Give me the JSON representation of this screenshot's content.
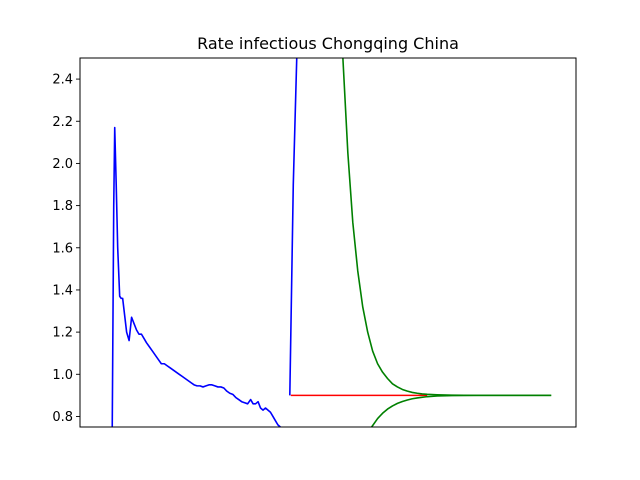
{
  "chart_data": {
    "type": "line",
    "title": "Rate infectious Chongqing China",
    "xlabel": "",
    "ylabel": "",
    "xlim": [
      0,
      100
    ],
    "ylim": [
      0.75,
      2.5
    ],
    "x_ticks_shown": false,
    "y_ticks": [
      0.8,
      1.0,
      1.2,
      1.4,
      1.6,
      1.8,
      2.0,
      2.2,
      2.4
    ],
    "y_tick_labels": [
      "0.8",
      "1.0",
      "1.2",
      "1.4",
      "1.6",
      "1.8",
      "2.0",
      "2.2",
      "2.4"
    ],
    "grid": false,
    "legend": "none",
    "series": [
      {
        "color": "#0000ff",
        "x": [
          6.5,
          6.6,
          6.8,
          7.0,
          7.3,
          7.6,
          8.0,
          8.3,
          8.6,
          9.0,
          9.4,
          9.9,
          10.4,
          10.9,
          11.4,
          11.9,
          12.4,
          12.9,
          13.4,
          14.0,
          14.6,
          15.2,
          15.8,
          16.4,
          17.0,
          17.6,
          18.2,
          18.8,
          19.4,
          20.0,
          20.6,
          21.2,
          21.8,
          22.4,
          23.0,
          23.6,
          24.2,
          24.8,
          25.4,
          26.0,
          26.6,
          27.2,
          27.8,
          28.4,
          29.0,
          29.6,
          30.2,
          30.8,
          31.4,
          32.0,
          32.6,
          33.2,
          33.8,
          34.4,
          34.9,
          35.4,
          35.9,
          36.4,
          36.9,
          37.4,
          37.9,
          38.4,
          38.9,
          39.4,
          39.9,
          40.4
        ],
        "y": [
          0.75,
          1.1,
          1.8,
          2.17,
          1.9,
          1.6,
          1.37,
          1.36,
          1.36,
          1.28,
          1.2,
          1.16,
          1.27,
          1.24,
          1.21,
          1.19,
          1.19,
          1.17,
          1.15,
          1.13,
          1.11,
          1.09,
          1.07,
          1.05,
          1.05,
          1.04,
          1.03,
          1.02,
          1.01,
          1.0,
          0.99,
          0.98,
          0.97,
          0.96,
          0.95,
          0.945,
          0.945,
          0.94,
          0.945,
          0.95,
          0.95,
          0.945,
          0.94,
          0.94,
          0.935,
          0.92,
          0.91,
          0.905,
          0.89,
          0.88,
          0.87,
          0.865,
          0.86,
          0.88,
          0.86,
          0.86,
          0.87,
          0.84,
          0.83,
          0.84,
          0.83,
          0.82,
          0.8,
          0.78,
          0.76,
          0.75
        ]
      },
      {
        "color": "#0000ff",
        "x": [
          42.3,
          43.0,
          43.7
        ],
        "y": [
          0.9,
          1.9,
          2.5
        ]
      },
      {
        "color": "#ff0000",
        "x": [
          42.5,
          70.0
        ],
        "y": [
          0.9,
          0.9
        ]
      },
      {
        "color": "#008000",
        "x": [
          53.0,
          54.0,
          55.0,
          56.0,
          57.0,
          58.0,
          59.0,
          60.0,
          61.0,
          62.0,
          63.0,
          64.0,
          65.0,
          66.0,
          67.0,
          68.0,
          69.0,
          70.0,
          72.0,
          75.0,
          80.0,
          85.0,
          90.0,
          95.0
        ],
        "y": [
          2.5,
          2.05,
          1.72,
          1.49,
          1.32,
          1.2,
          1.11,
          1.05,
          1.01,
          0.98,
          0.955,
          0.94,
          0.928,
          0.92,
          0.914,
          0.91,
          0.907,
          0.905,
          0.903,
          0.901,
          0.9,
          0.9,
          0.9,
          0.9
        ]
      },
      {
        "color": "#008000",
        "x": [
          58.8,
          60.0,
          61.0,
          62.0,
          63.0,
          64.0,
          65.0,
          66.0,
          67.0,
          68.0,
          70.0,
          72.0,
          75.0,
          80.0,
          85.0,
          90.0,
          95.0
        ],
        "y": [
          0.75,
          0.79,
          0.815,
          0.835,
          0.85,
          0.862,
          0.871,
          0.878,
          0.884,
          0.888,
          0.894,
          0.897,
          0.899,
          0.9,
          0.9,
          0.9,
          0.9
        ]
      }
    ]
  }
}
